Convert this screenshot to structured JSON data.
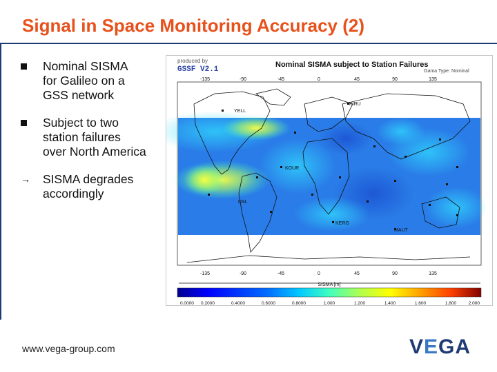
{
  "slide": {
    "title": "Signal in Space Monitoring Accuracy (2)",
    "bullets": [
      {
        "marker": "n",
        "lines": [
          "Nominal SISMA",
          "for Galileo on a",
          "GSS network"
        ]
      },
      {
        "marker": "n",
        "lines": [
          "Subject to two",
          "station failures",
          "over North America"
        ]
      },
      {
        "marker": "→",
        "lines": [
          "SISMA degrades",
          "accordingly"
        ]
      }
    ],
    "footer_url": "www.vega-group.com",
    "logo": {
      "part1": "V",
      "part2": "E",
      "part3": "GA"
    }
  },
  "figure": {
    "produced_by": "produced by",
    "product": "GSSF V2.1",
    "title": "Nominal SISMA subject to Station Failures",
    "subtitle": "Gama Type: Nominal",
    "top_ticks": [
      "-135",
      "-90",
      "-45",
      "0",
      "45",
      "90",
      "135"
    ],
    "bottom_ticks": [
      "-135",
      "-90",
      "-45",
      "0",
      "45",
      "90",
      "135"
    ],
    "colorbar_label": "SISMA [m]",
    "colorbar_ticks": [
      "0.0000",
      "0.2000",
      "0.4000",
      "0.6000",
      "0.8000",
      "1.000",
      "1.200",
      "1.400",
      "1.600",
      "1.800",
      "2.000"
    ],
    "colorbar_colors": [
      "#00008f",
      "#0000ff",
      "#0070ff",
      "#00c8ff",
      "#40ffbf",
      "#b0ff50",
      "#ffff00",
      "#ffa000",
      "#ff4000",
      "#d00000",
      "#800000"
    ],
    "stations": [
      "YELL",
      "KIRU",
      "DSL",
      "KERG",
      "MAUT",
      "KOUR"
    ]
  }
}
